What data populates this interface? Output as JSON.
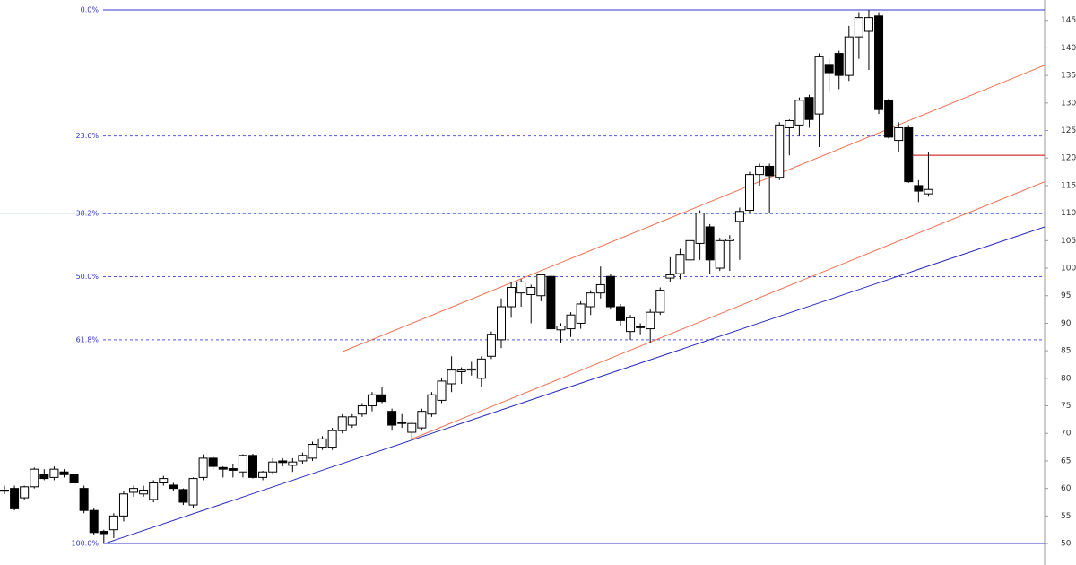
{
  "chart_data": {
    "type": "candlestick",
    "open": [
      59.5,
      60,
      58.3,
      60.3,
      62.5,
      62,
      63,
      62.5,
      60,
      56,
      52.2,
      52.5,
      55,
      59.3,
      59,
      58,
      61,
      60.6,
      59.8,
      57,
      62,
      65.5,
      63.8,
      63.6,
      63,
      66,
      62,
      63,
      65,
      64.2,
      65,
      65.5,
      67.5,
      67.5,
      70.5,
      71.5,
      73.5,
      75,
      77,
      74,
      72,
      70.2,
      71,
      73.5,
      76,
      79,
      81.2,
      81.5,
      80,
      84,
      87,
      93,
      95.5,
      95.2,
      95,
      98.5,
      88.8,
      89,
      90,
      93,
      95.5,
      98.5,
      93,
      88.5,
      89.5,
      89,
      92,
      98.2,
      99,
      101.5,
      104.5,
      107.5,
      100,
      105,
      108.5,
      110.5,
      117,
      118.5,
      116.5,
      125.5,
      126,
      131,
      128,
      137,
      139,
      135,
      142,
      143,
      145.8,
      130.5,
      123.2,
      125.5,
      115,
      113.5
    ],
    "high": [
      60.5,
      60.5,
      60.5,
      63.8,
      63.5,
      64,
      63.5,
      62.5,
      60.5,
      56.5,
      52.5,
      55.5,
      59.5,
      60.5,
      60.5,
      61.5,
      62.3,
      61,
      60,
      62,
      66.2,
      66,
      64,
      64.5,
      66.2,
      66.3,
      63.2,
      65.5,
      65.5,
      65.5,
      66.5,
      68.5,
      69.5,
      71,
      73.5,
      73.5,
      75.5,
      77.5,
      78.5,
      74.5,
      73.5,
      72,
      74.5,
      77.5,
      80,
      84,
      82,
      83,
      84,
      88.5,
      94.5,
      97.5,
      98,
      97,
      99,
      99,
      90,
      92,
      94,
      96,
      100.3,
      99,
      93.5,
      91.5,
      90,
      92.5,
      96.5,
      102,
      103.5,
      105.5,
      110.5,
      108,
      105.5,
      106,
      111,
      117.5,
      119,
      119,
      126.5,
      127,
      131,
      131.5,
      139,
      138,
      139.5,
      144,
      146.5,
      146.9,
      146.5,
      130.8,
      126.5,
      126,
      116,
      121
    ],
    "low": [
      59,
      56,
      58,
      60,
      61.5,
      61.5,
      62,
      60.5,
      55.5,
      51.5,
      50,
      51,
      54,
      58.5,
      58.5,
      57.5,
      60.5,
      59.5,
      57,
      56.5,
      61.5,
      63.5,
      62,
      62,
      62,
      61.8,
      61.5,
      62.5,
      64,
      63,
      64.5,
      65,
      67,
      67,
      70,
      71,
      73,
      74,
      75.5,
      70.5,
      71,
      69,
      70.5,
      73,
      75.5,
      77.5,
      79,
      80.5,
      78.5,
      83.5,
      85.5,
      91,
      93,
      90,
      94,
      89,
      86.5,
      87.5,
      89,
      91.5,
      94.5,
      92.5,
      89.5,
      87,
      88,
      86.5,
      91.5,
      97.5,
      98,
      100,
      101.5,
      99,
      99.5,
      99.5,
      101.5,
      110,
      115,
      110,
      116,
      120.5,
      124,
      125.5,
      122,
      132,
      132.5,
      134,
      138,
      136,
      128,
      123.5,
      121,
      115.5,
      112,
      113
    ],
    "close": [
      59.7,
      56.3,
      60.3,
      63.5,
      61.8,
      63.5,
      62.5,
      61,
      56,
      52,
      51.8,
      55,
      59,
      60,
      59.7,
      61,
      61.8,
      60,
      57.5,
      61.8,
      65.5,
      64,
      63.5,
      63.3,
      66,
      62,
      63,
      64.8,
      64.7,
      64.8,
      66,
      68,
      69,
      70.5,
      73,
      73,
      75,
      77,
      75.8,
      71.5,
      71.8,
      71.8,
      74,
      77,
      79.5,
      81.5,
      81.5,
      81.7,
      83.5,
      88,
      93,
      96.5,
      97.5,
      96.5,
      98.8,
      89,
      89.5,
      91.5,
      93.5,
      95.5,
      97,
      93,
      90.5,
      91,
      89.2,
      92,
      96,
      98.8,
      102.5,
      105,
      110,
      101.5,
      105,
      105.3,
      110.3,
      117,
      118.5,
      116.8,
      126,
      126.8,
      130.5,
      127,
      138.5,
      135.5,
      135,
      142,
      145.5,
      145.5,
      128.8,
      123.8,
      125.5,
      115.7,
      114,
      114.3
    ],
    "ylim": [
      46.1,
      148.7
    ],
    "yticks": [
      50,
      55,
      60,
      65,
      70,
      75,
      80,
      85,
      90,
      95,
      100,
      105,
      110,
      115,
      120,
      125,
      130,
      135,
      140,
      145
    ],
    "fib_levels": [
      {
        "value": 146.9,
        "label": "0.0%"
      },
      {
        "value": 124.0,
        "label": "23.6%"
      },
      {
        "value": 109.9,
        "label": "38.2%"
      },
      {
        "value": 98.45,
        "label": "50.0%"
      },
      {
        "value": 87.0,
        "label": "61.8%"
      },
      {
        "value": 50.0,
        "label": "100.0%"
      }
    ],
    "lines": [
      {
        "x": [
          10.1,
          104.7
        ],
        "y": [
          50,
          107.5
        ],
        "color": "#2b2bbd"
      },
      {
        "x": [
          34.1,
          104.7
        ],
        "y": [
          84.9,
          136.85
        ],
        "color": "#f07050"
      },
      {
        "x": [
          40.9,
          104.7
        ],
        "y": [
          68.9,
          115.7
        ],
        "color": "#f07050"
      },
      {
        "x": [
          91.2,
          104.7
        ],
        "y": [
          120.5,
          120.5
        ],
        "color": "#cc0000"
      },
      {
        "x": [
          -0.45,
          104.7
        ],
        "y": [
          110,
          110
        ],
        "color": "#2e8b8b"
      }
    ]
  }
}
